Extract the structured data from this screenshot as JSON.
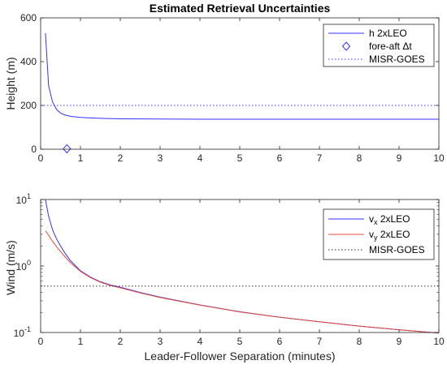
{
  "chart_data": [
    {
      "type": "line",
      "title": "Estimated Retrieval Uncertainties",
      "xlabel": "",
      "ylabel": "Height (m)",
      "xlim": [
        0,
        10
      ],
      "ylim": [
        0,
        600
      ],
      "xticks": [
        0,
        1,
        2,
        3,
        4,
        5,
        6,
        7,
        8,
        9,
        10
      ],
      "yticks": [
        0,
        200,
        400,
        600
      ],
      "legend_location": "top-right",
      "series": [
        {
          "name": "h 2xLEO",
          "color": "#3333ff",
          "style": "solid",
          "x": [
            0.12,
            0.2,
            0.3,
            0.4,
            0.5,
            0.6,
            0.75,
            1.0,
            1.25,
            1.5,
            2,
            3,
            4,
            5,
            6,
            7,
            8,
            9,
            10
          ],
          "y": [
            530,
            290,
            215,
            182,
            165,
            157,
            150,
            145,
            143,
            141,
            139,
            138,
            137,
            137,
            137,
            137,
            137,
            137,
            137
          ]
        },
        {
          "name": "fore-aft ",
          "name_symbol": "Δt",
          "color": "#3333ff",
          "marker": "diamond",
          "x": [
            0.66
          ],
          "y": [
            2
          ]
        },
        {
          "name": "MISR-GOES",
          "color": "#3333ff",
          "style": "dotted",
          "x": [
            0,
            10
          ],
          "y": [
            200,
            200
          ]
        }
      ]
    },
    {
      "type": "line",
      "title": "",
      "xlabel": "Leader-Follower Separation (minutes)",
      "ylabel": "Wind (m/s)",
      "xlim": [
        0,
        10
      ],
      "ylim": [
        0.1,
        10
      ],
      "yscale": "log",
      "xticks": [
        0,
        1,
        2,
        3,
        4,
        5,
        6,
        7,
        8,
        9,
        10
      ],
      "yticks": [
        {
          "base": "10",
          "exp": "-1"
        },
        {
          "base": "10",
          "exp": "0"
        },
        {
          "base": "10",
          "exp": "1"
        }
      ],
      "legend_location": "top-right",
      "series": [
        {
          "name_main": "v",
          "name_sub": "x",
          "name_rest": " 2xLEO",
          "color": "#3333ff",
          "style": "solid",
          "x": [
            0.12,
            0.2,
            0.3,
            0.4,
            0.5,
            0.6,
            0.75,
            1.0,
            1.25,
            1.5,
            1.75,
            2,
            2.5,
            3,
            4,
            5,
            6,
            7,
            8,
            9,
            10
          ],
          "y": [
            10.0,
            5.6,
            3.5,
            2.55,
            2.0,
            1.6,
            1.2,
            0.85,
            0.68,
            0.58,
            0.52,
            0.48,
            0.4,
            0.34,
            0.26,
            0.205,
            0.17,
            0.145,
            0.125,
            0.11,
            0.098
          ]
        },
        {
          "name_main": "v",
          "name_sub": "y",
          "name_rest": " 2xLEO",
          "color": "#e34a33",
          "style": "solid",
          "x": [
            0.12,
            0.2,
            0.3,
            0.4,
            0.5,
            0.6,
            0.75,
            1.0,
            1.25,
            1.5,
            1.75,
            2,
            2.5,
            3,
            4,
            5,
            6,
            7,
            8,
            9,
            10
          ],
          "y": [
            3.4,
            2.9,
            2.35,
            1.95,
            1.65,
            1.4,
            1.12,
            0.83,
            0.67,
            0.57,
            0.51,
            0.47,
            0.395,
            0.335,
            0.258,
            0.204,
            0.17,
            0.145,
            0.125,
            0.11,
            0.098
          ]
        },
        {
          "name": "MISR-GOES",
          "color": "#333333",
          "style": "dotted",
          "x": [
            0,
            10
          ],
          "y": [
            0.5,
            0.5
          ]
        }
      ]
    }
  ]
}
